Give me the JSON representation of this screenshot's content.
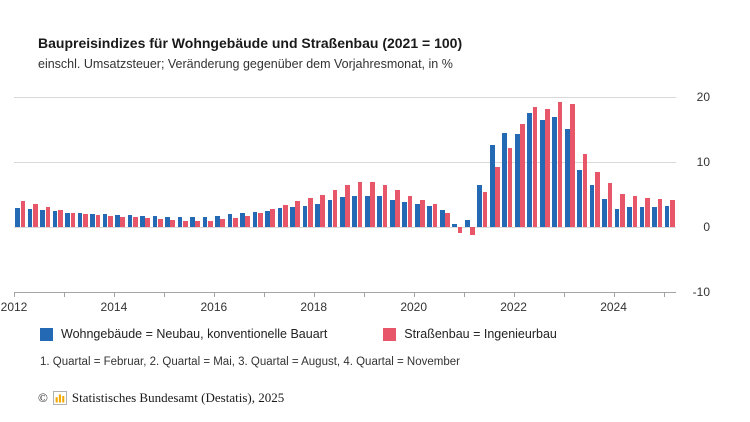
{
  "page": {
    "title": "Baupreisindizes für Wohngebäude und Straßenbau (2021 = 100)",
    "subtitle": "einschl. Umsatzsteuer; Veränderung gegenüber dem Vorjahresmonat, in %",
    "footnote": "1. Quartal = Februar, 2. Quartal = Mai, 3. Quartal = August, 4. Quartal = November",
    "copyright_prefix": "©",
    "copyright_text": "Statistisches Bundesamt (Destatis), 2025"
  },
  "colors": {
    "wohngebaeude_blue": "#2469b3",
    "strassenbau_red": "#e8566a",
    "gridline": "#d9d9d9",
    "axis": "#a3a3a3",
    "text": "#333333",
    "logo_gold": "#f2a900"
  },
  "legend": {
    "items": [
      {
        "label": "Wohngebäude = Neubau, konventionelle Bauart",
        "color": "#2469b3"
      },
      {
        "label": "Straßenbau = Ingenieurbau",
        "color": "#e8566a"
      }
    ]
  },
  "chart_data": {
    "type": "bar",
    "title": "Baupreisindizes für Wohngebäude und Straßenbau (2021 = 100)",
    "subtitle": "einschl. Umsatzsteuer; Veränderung gegenüber dem Vorjahresmonat, in %",
    "xlabel": "",
    "ylabel": "Veränderung gegenüber dem Vorjahresmonat, in %",
    "value_unit": "%",
    "ylim": [
      -10,
      20
    ],
    "yticks": [
      20,
      10,
      0,
      -10
    ],
    "xtick_years": [
      2012,
      2014,
      2016,
      2018,
      2020,
      2022,
      2024
    ],
    "grid": true,
    "legend_position": "bottom",
    "categories": [
      "2012 Q1",
      "2012 Q2",
      "2012 Q3",
      "2012 Q4",
      "2013 Q1",
      "2013 Q2",
      "2013 Q3",
      "2013 Q4",
      "2014 Q1",
      "2014 Q2",
      "2014 Q3",
      "2014 Q4",
      "2015 Q1",
      "2015 Q2",
      "2015 Q3",
      "2015 Q4",
      "2016 Q1",
      "2016 Q2",
      "2016 Q3",
      "2016 Q4",
      "2017 Q1",
      "2017 Q2",
      "2017 Q3",
      "2017 Q4",
      "2018 Q1",
      "2018 Q2",
      "2018 Q3",
      "2018 Q4",
      "2019 Q1",
      "2019 Q2",
      "2019 Q3",
      "2019 Q4",
      "2020 Q1",
      "2020 Q2",
      "2020 Q3",
      "2020 Q4",
      "2021 Q1",
      "2021 Q2",
      "2021 Q3",
      "2021 Q4",
      "2022 Q1",
      "2022 Q2",
      "2022 Q3",
      "2022 Q4",
      "2023 Q1",
      "2023 Q2",
      "2023 Q3",
      "2023 Q4",
      "2024 Q1",
      "2024 Q2",
      "2024 Q3",
      "2024 Q4",
      "2025 Q1"
    ],
    "series": [
      {
        "name": "Wohngebäude = Neubau, konventionelle Bauart",
        "color": "#2469b3",
        "values": [
          2.9,
          2.7,
          2.6,
          2.5,
          2.2,
          2.1,
          2.0,
          2.0,
          1.9,
          1.8,
          1.7,
          1.7,
          1.5,
          1.6,
          1.6,
          1.6,
          1.7,
          2.0,
          2.1,
          2.3,
          2.5,
          2.9,
          3.1,
          3.3,
          3.6,
          4.1,
          4.6,
          4.8,
          4.8,
          4.7,
          4.2,
          3.8,
          3.5,
          3.2,
          2.6,
          0.5,
          1.1,
          6.4,
          12.6,
          14.4,
          14.3,
          17.6,
          16.5,
          16.9,
          15.1,
          8.8,
          6.4,
          4.3,
          2.8,
          3.1,
          3.1,
          3.1,
          3.2
        ]
      },
      {
        "name": "Straßenbau = Ingenieurbau",
        "color": "#e8566a",
        "values": [
          4.0,
          3.6,
          3.1,
          2.6,
          2.2,
          2.0,
          1.8,
          1.7,
          1.6,
          1.5,
          1.4,
          1.3,
          1.1,
          1.0,
          0.9,
          1.0,
          1.2,
          1.4,
          1.7,
          2.1,
          2.7,
          3.4,
          4.0,
          4.5,
          5.0,
          5.7,
          6.4,
          6.9,
          7.0,
          6.5,
          5.7,
          4.8,
          4.2,
          3.6,
          2.2,
          -0.9,
          -1.3,
          5.4,
          9.3,
          12.1,
          15.9,
          18.4,
          18.1,
          19.2,
          18.9,
          11.2,
          8.4,
          6.7,
          5.1,
          4.7,
          4.4,
          4.3,
          4.1
        ]
      }
    ]
  }
}
